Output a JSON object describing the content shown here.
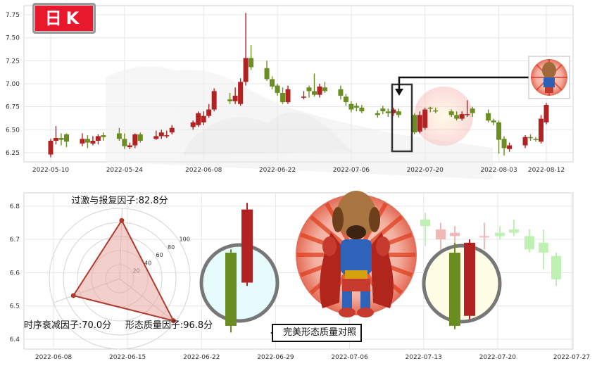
{
  "logo": {
    "text": "日K"
  },
  "callout": {
    "text": "完美形态质量对照"
  },
  "colors": {
    "up": "#b22222",
    "down": "#6b8e23",
    "radar_stroke": "#b03a2e",
    "radar_fill": "#e8a8a0"
  },
  "chart_data": [
    {
      "type": "candlestick",
      "title": "",
      "x_dates": [
        "2022-05-10",
        "2022-05-11",
        "2022-05-12",
        "2022-05-13",
        "2022-05-16",
        "2022-05-17",
        "2022-05-18",
        "2022-05-19",
        "2022-05-20",
        "2022-05-23",
        "2022-05-24",
        "2022-05-25",
        "2022-05-26",
        "2022-05-27",
        "2022-05-30",
        "2022-05-31",
        "2022-06-01",
        "2022-06-02",
        "2022-06-06",
        "2022-06-07",
        "2022-06-08",
        "2022-06-09",
        "2022-06-10",
        "2022-06-13",
        "2022-06-14",
        "2022-06-15",
        "2022-06-16",
        "2022-06-17",
        "2022-06-20",
        "2022-06-21",
        "2022-06-22",
        "2022-06-23",
        "2022-06-24",
        "2022-06-27",
        "2022-06-28",
        "2022-06-29",
        "2022-06-30",
        "2022-07-01",
        "2022-07-04",
        "2022-07-05",
        "2022-07-06",
        "2022-07-07",
        "2022-07-08",
        "2022-07-11",
        "2022-07-12",
        "2022-07-13",
        "2022-07-14",
        "2022-07-15",
        "2022-07-18",
        "2022-07-19",
        "2022-07-20",
        "2022-07-21",
        "2022-07-22",
        "2022-07-25",
        "2022-07-26",
        "2022-07-27",
        "2022-07-28",
        "2022-07-29",
        "2022-08-01",
        "2022-08-02",
        "2022-08-03",
        "2022-08-04",
        "2022-08-05",
        "2022-08-08",
        "2022-08-09",
        "2022-08-10",
        "2022-08-11",
        "2022-08-12"
      ],
      "open": [
        6.23,
        6.38,
        6.41,
        6.45,
        6.35,
        6.4,
        6.35,
        6.38,
        6.44,
        6.46,
        6.4,
        6.31,
        6.33,
        6.45,
        6.4,
        6.43,
        6.44,
        6.47,
        6.53,
        6.55,
        6.58,
        6.65,
        6.72,
        6.83,
        6.81,
        6.78,
        7.02,
        7.28,
        7.17,
        7.05,
        6.98,
        6.9,
        6.8,
        6.85,
        6.96,
        6.92,
        6.88,
        6.96,
        6.94,
        6.86,
        6.78,
        6.76,
        6.74,
        6.68,
        6.73,
        6.7,
        6.68,
        6.7,
        6.66,
        6.48,
        6.52,
        6.74,
        6.71,
        6.7,
        6.66,
        6.62,
        6.67,
        6.73,
        6.68,
        6.6,
        6.58,
        6.4,
        6.29,
        6.33,
        6.42,
        6.4,
        6.37,
        6.58
      ],
      "close": [
        6.38,
        6.41,
        6.39,
        6.37,
        6.4,
        6.36,
        6.38,
        6.43,
        6.42,
        6.4,
        6.32,
        6.33,
        6.45,
        6.38,
        6.43,
        6.47,
        6.44,
        6.52,
        6.58,
        6.68,
        6.65,
        6.72,
        6.92,
        6.81,
        6.87,
        7.02,
        7.28,
        7.18,
        7.05,
        6.97,
        6.9,
        6.8,
        6.94,
        6.86,
        6.92,
        6.88,
        6.97,
        6.92,
        6.87,
        6.8,
        6.72,
        6.74,
        6.7,
        6.66,
        6.7,
        6.68,
        6.72,
        6.66,
        6.47,
        6.66,
        6.72,
        6.73,
        6.7,
        6.66,
        6.62,
        6.67,
        6.67,
        6.68,
        6.6,
        6.58,
        6.39,
        6.3,
        6.33,
        6.42,
        6.41,
        6.39,
        6.62,
        6.77
      ],
      "high": [
        6.4,
        6.54,
        6.46,
        6.46,
        6.46,
        6.44,
        6.43,
        6.45,
        6.47,
        6.52,
        6.46,
        6.36,
        6.46,
        6.47,
        6.49,
        6.5,
        6.49,
        6.55,
        6.6,
        6.7,
        6.7,
        6.78,
        6.95,
        6.9,
        6.96,
        7.06,
        7.77,
        7.42,
        7.25,
        7.08,
        7.0,
        6.96,
        6.98,
        6.92,
        6.98,
        7.11,
        7.0,
        7.02,
        6.98,
        6.89,
        6.81,
        6.79,
        6.77,
        6.71,
        6.76,
        6.73,
        6.74,
        6.73,
        6.68,
        6.7,
        6.74,
        6.75,
        6.74,
        6.72,
        6.7,
        6.7,
        6.82,
        6.75,
        6.72,
        6.62,
        6.6,
        6.43,
        6.36,
        6.44,
        6.45,
        6.42,
        6.66,
        6.79
      ],
      "low": [
        6.2,
        6.34,
        6.33,
        6.31,
        6.32,
        6.3,
        6.33,
        6.34,
        6.38,
        6.38,
        6.29,
        6.29,
        6.3,
        6.36,
        6.39,
        6.4,
        6.41,
        6.45,
        6.5,
        6.53,
        6.55,
        6.63,
        6.7,
        6.78,
        6.78,
        6.76,
        6.98,
        7.15,
        7.03,
        6.94,
        6.87,
        6.78,
        6.78,
        6.83,
        6.85,
        6.86,
        6.85,
        6.9,
        6.83,
        6.76,
        6.69,
        6.7,
        6.68,
        6.63,
        6.67,
        6.64,
        6.65,
        6.63,
        6.45,
        6.46,
        6.5,
        6.69,
        6.68,
        6.64,
        6.6,
        6.6,
        6.64,
        6.64,
        6.58,
        6.55,
        6.24,
        6.22,
        6.26,
        6.3,
        6.38,
        6.37,
        6.35,
        6.56
      ],
      "xticks": [
        "2022-05-10",
        "2022-05-24",
        "2022-06-08",
        "2022-06-22",
        "2022-07-06",
        "2022-07-20",
        "2022-08-03",
        "2022-08-12"
      ],
      "yticks": [
        6.25,
        6.5,
        6.75,
        7.0,
        7.25,
        7.5,
        7.75
      ],
      "ylim": [
        6.15,
        7.85
      ],
      "highlight": {
        "from": "2022-07-19",
        "to": "2022-07-20",
        "label": ""
      }
    },
    {
      "type": "radar",
      "axes": [
        {
          "label": "过激与报复因子",
          "value": 82.8,
          "display": "过激与报复因子:82.8分"
        },
        {
          "label": "形态质量因子",
          "value": 96.8,
          "display": "形态质量因子:96.8分"
        },
        {
          "label": "时序衰减因子",
          "value": 70.0,
          "display": "时序衰减因子:70.0分"
        }
      ],
      "rlim": [
        0,
        100
      ],
      "rticks": [
        20,
        40,
        60,
        80,
        100
      ]
    },
    {
      "type": "candlestick",
      "title": "",
      "xticks": [
        "2022-06-08",
        "2022-06-15",
        "2022-06-22",
        "2022-06-29",
        "2022-07-06",
        "2022-07-13",
        "2022-07-20",
        "2022-07-27"
      ],
      "yticks": [
        6.4,
        6.5,
        6.6,
        6.7,
        6.8
      ],
      "ylim": [
        6.37,
        6.84
      ],
      "left_pair": [
        {
          "open": 6.66,
          "close": 6.44,
          "high": 6.67,
          "low": 6.42,
          "color": "down"
        },
        {
          "open": 6.57,
          "close": 6.79,
          "high": 6.81,
          "low": 6.56,
          "color": "up"
        }
      ],
      "right_pair": [
        {
          "open": 6.66,
          "close": 6.44,
          "high": 6.69,
          "low": 6.43,
          "color": "down"
        },
        {
          "open": 6.47,
          "close": 6.69,
          "high": 6.7,
          "low": 6.46,
          "color": "up"
        }
      ],
      "faded_candles": [
        {
          "open": 6.76,
          "close": 6.74,
          "high": 6.78,
          "low": 6.68
        },
        {
          "open": 6.7,
          "close": 6.73,
          "high": 6.75,
          "low": 6.66
        },
        {
          "open": 6.71,
          "close": 6.72,
          "high": 6.74,
          "low": 6.69
        },
        {
          "open": 6.71,
          "close": 6.71,
          "high": 6.75,
          "low": 6.67
        },
        {
          "open": 6.72,
          "close": 6.71,
          "high": 6.74,
          "low": 6.7
        },
        {
          "open": 6.73,
          "close": 6.72,
          "high": 6.76,
          "low": 6.71
        },
        {
          "open": 6.71,
          "close": 6.67,
          "high": 6.73,
          "low": 6.66
        },
        {
          "open": 6.69,
          "close": 6.66,
          "high": 6.73,
          "low": 6.61
        },
        {
          "open": 6.65,
          "close": 6.58,
          "high": 6.66,
          "low": 6.56
        }
      ]
    }
  ]
}
